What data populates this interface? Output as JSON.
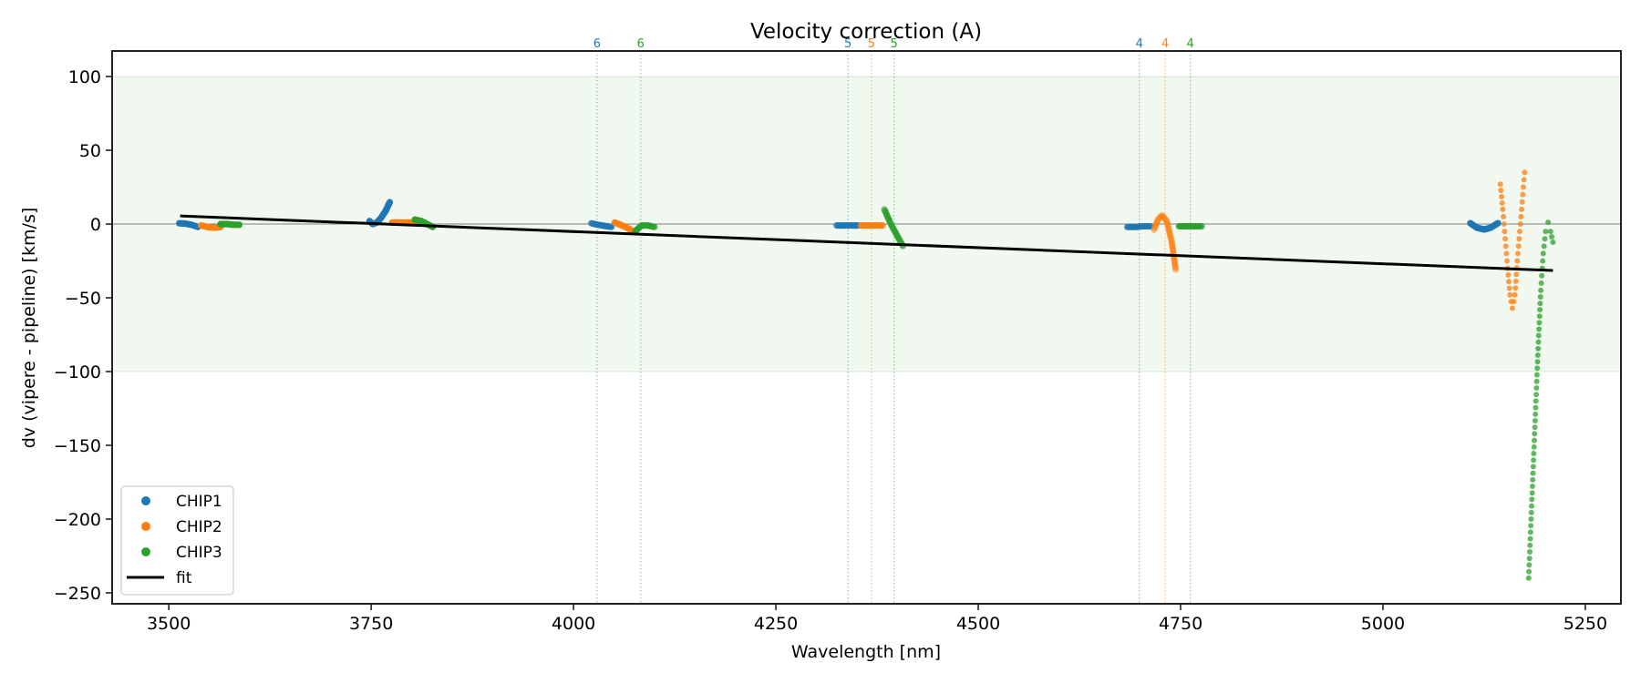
{
  "chart_data": {
    "type": "scatter",
    "title": "Velocity correction (A)",
    "xlabel": "Wavelength [nm]",
    "ylabel": "dv (vipere - pipeline) [km/s]",
    "xlim": [
      3430,
      5294
    ],
    "ylim": [
      -257.4,
      117.3
    ],
    "xticks": [
      3500,
      3750,
      4000,
      4250,
      4500,
      4750,
      5000,
      5250
    ],
    "yticks": [
      100,
      50,
      0,
      -50,
      -100,
      -150,
      -200,
      -250
    ],
    "ytick_labels": [
      "100",
      "50",
      "0",
      "−50",
      "−100",
      "−150",
      "−200",
      "−250"
    ],
    "xtick_labels": [
      "3500",
      "3750",
      "4000",
      "4250",
      "4500",
      "4750",
      "5000",
      "5250"
    ],
    "band": {
      "y0": -100,
      "y1": 100,
      "color": "#2ca02c"
    },
    "zero_line": 0,
    "legend": {
      "position": "lower-left",
      "entries": [
        "CHIP1",
        "CHIP2",
        "CHIP3",
        "fit"
      ]
    },
    "colors": {
      "CHIP1": "#1f77b4",
      "CHIP2": "#ff7f0e",
      "CHIP3": "#2ca02c",
      "fit": "#000000"
    },
    "order_markers": [
      {
        "x": 4029,
        "label": "6",
        "series": "CHIP1"
      },
      {
        "x": 4083,
        "label": "6",
        "series": "CHIP3"
      },
      {
        "x": 4339,
        "label": "5",
        "series": "CHIP1"
      },
      {
        "x": 4368,
        "label": "5",
        "series": "CHIP2"
      },
      {
        "x": 4396,
        "label": "5",
        "series": "CHIP3"
      },
      {
        "x": 4699,
        "label": "4",
        "series": "CHIP1"
      },
      {
        "x": 4731,
        "label": "4",
        "series": "CHIP2"
      },
      {
        "x": 4762,
        "label": "4",
        "series": "CHIP3"
      }
    ],
    "fit": {
      "x": [
        3514,
        5210
      ],
      "y": [
        5.5,
        -31.5
      ]
    },
    "series": [
      {
        "name": "CHIP1",
        "segments": [
          {
            "alpha": 1.0,
            "x": [
              3513,
              3520,
              3528,
              3536
            ],
            "y": [
              0.5,
              0.3,
              -0.5,
              -2
            ]
          },
          {
            "alpha": 1.0,
            "x": [
              3748,
              3752,
              3757,
              3762,
              3768,
              3773
            ],
            "y": [
              2,
              0,
              1,
              4,
              9,
              14.8
            ]
          },
          {
            "alpha": 0.7,
            "x": [
              4022,
              4030,
              4038,
              4047
            ],
            "y": [
              0.5,
              -0.5,
              -1.2,
              -2
            ]
          },
          {
            "alpha": 0.7,
            "x": [
              4325,
              4334,
              4343,
              4352
            ],
            "y": [
              -1,
              -1,
              -1,
              -1
            ]
          },
          {
            "alpha": 0.7,
            "x": [
              4684,
              4694,
              4704,
              4713
            ],
            "y": [
              -2,
              -2,
              -1.5,
              -1.5
            ]
          },
          {
            "alpha": 1.0,
            "x": [
              5108,
              5116,
              5125,
              5133,
              5142
            ],
            "y": [
              0.6,
              -2.5,
              -3.7,
              -2.5,
              0.6
            ]
          }
        ]
      },
      {
        "name": "CHIP2",
        "segments": [
          {
            "alpha": 1.0,
            "x": [
              3540,
              3548,
              3556,
              3564
            ],
            "y": [
              -1,
              -2,
              -2.5,
              -2
            ]
          },
          {
            "alpha": 1.0,
            "x": [
              3776,
              3785,
              3795,
              3804
            ],
            "y": [
              1,
              1,
              1,
              1
            ]
          },
          {
            "alpha": 1.0,
            "x": [
              4051,
              4058,
              4066,
              4074
            ],
            "y": [
              1,
              -0.5,
              -2.5,
              -5
            ]
          },
          {
            "alpha": 0.7,
            "x": [
              4355,
              4364,
              4373,
              4382
            ],
            "y": [
              -1,
              -1,
              -1,
              -1
            ]
          },
          {
            "alpha": 0.35,
            "x": [
              4717,
              4722,
              4727,
              4733,
              4739,
              4744
            ],
            "y": [
              -4,
              3,
              6,
              2,
              -12,
              -31
            ]
          },
          {
            "alpha": 0.75,
            "x": [
              5145,
              5148,
              5151,
              5154,
              5157,
              5160,
              5163,
              5166,
              5169,
              5172,
              5175
            ],
            "y": [
              27,
              10,
              -10,
              -30,
              -48,
              -57,
              -48,
              -25,
              -5,
              15,
              35
            ]
          }
        ]
      },
      {
        "name": "CHIP3",
        "segments": [
          {
            "alpha": 1.0,
            "x": [
              3564,
              3572,
              3580,
              3587
            ],
            "y": [
              0,
              0,
              -0.5,
              -0.5
            ]
          },
          {
            "alpha": 1.0,
            "x": [
              3804,
              3812,
              3819,
              3826
            ],
            "y": [
              3,
              2,
              0,
              -2
            ]
          },
          {
            "alpha": 0.7,
            "x": [
              4076,
              4084,
              4092,
              4100
            ],
            "y": [
              -5,
              -1,
              -1,
              -2
            ]
          },
          {
            "alpha": 0.5,
            "x": [
              4384,
              4392,
              4400,
              4407
            ],
            "y": [
              10,
              0,
              -8,
              -15
            ]
          },
          {
            "alpha": 0.7,
            "x": [
              4748,
              4757,
              4766,
              4776
            ],
            "y": [
              -1.5,
              -1.5,
              -1.5,
              -1.5
            ]
          },
          {
            "alpha": 0.75,
            "x": [
              5180,
              5183,
              5186,
              5189,
              5192,
              5195,
              5198,
              5201,
              5204,
              5207,
              5210
            ],
            "y": [
              -240,
              -200,
              -160,
              -120,
              -80,
              -45,
              -20,
              -5,
              1.2,
              -5,
              -12.3
            ]
          }
        ]
      }
    ]
  }
}
